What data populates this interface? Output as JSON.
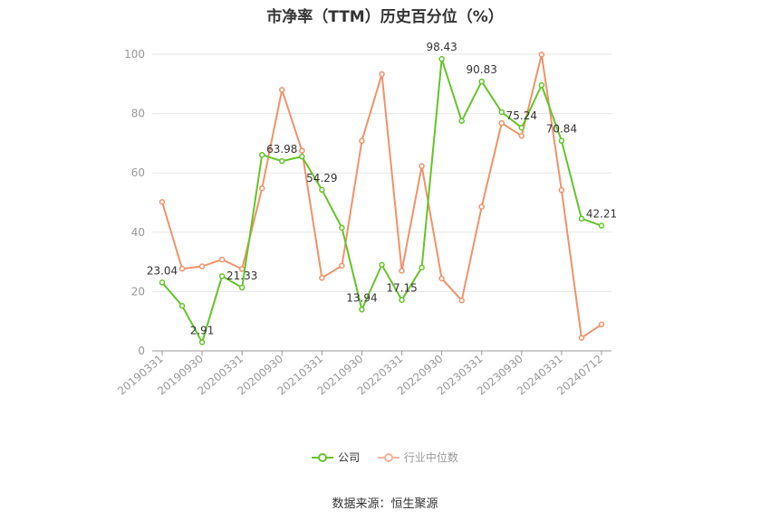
{
  "chart_data": {
    "type": "line",
    "title": "市净率（TTM）历史百分位（%）",
    "xlabel": "",
    "ylabel": "",
    "ylim": [
      0,
      100
    ],
    "yticks": [
      0,
      20,
      40,
      60,
      80,
      100
    ],
    "grid": true,
    "legend_position": "bottom",
    "x": [
      "20190331",
      "20190630",
      "20190930",
      "20191231",
      "20200331",
      "20200630",
      "20200930",
      "20201231",
      "20210331",
      "20210630",
      "20210930",
      "20211231",
      "20220331",
      "20220630",
      "20220930",
      "20221231",
      "20230331",
      "20230630",
      "20230930",
      "20231231",
      "20240331",
      "20240630",
      "20240712"
    ],
    "x_tick_labels": [
      "20190331",
      "20190930",
      "20200331",
      "20200930",
      "20210331",
      "20210930",
      "20220331",
      "20220930",
      "20230331",
      "20230930",
      "20240331",
      "20240712"
    ],
    "series": [
      {
        "name": "公司",
        "color": "#66c42a",
        "values": [
          23.04,
          15.2,
          2.91,
          25.2,
          21.33,
          66.1,
          63.98,
          65.5,
          54.29,
          41.5,
          13.94,
          29.0,
          17.15,
          28.1,
          98.43,
          77.5,
          90.83,
          80.5,
          75.24,
          89.6,
          70.84,
          44.6,
          42.21
        ],
        "labels": [
          "23.04",
          "",
          "2.91",
          "",
          "21.33",
          "",
          "63.98",
          "",
          "54.29",
          "",
          "13.94",
          "",
          "17.15",
          "",
          "98.43",
          "",
          "90.83",
          "",
          "75.24",
          "",
          "70.84",
          "",
          "42.21"
        ]
      },
      {
        "name": "行业中位数",
        "color": "#f0926a",
        "values": [
          50.2,
          27.7,
          28.5,
          30.8,
          27.6,
          54.8,
          88.0,
          67.5,
          24.6,
          28.7,
          70.8,
          93.3,
          27.0,
          62.3,
          24.4,
          17.0,
          48.6,
          76.8,
          72.5,
          99.9,
          54.2,
          4.4,
          8.9
        ]
      }
    ]
  },
  "legend": {
    "company": "公司",
    "industry": "行业中位数"
  },
  "source": "数据来源：恒生聚源"
}
